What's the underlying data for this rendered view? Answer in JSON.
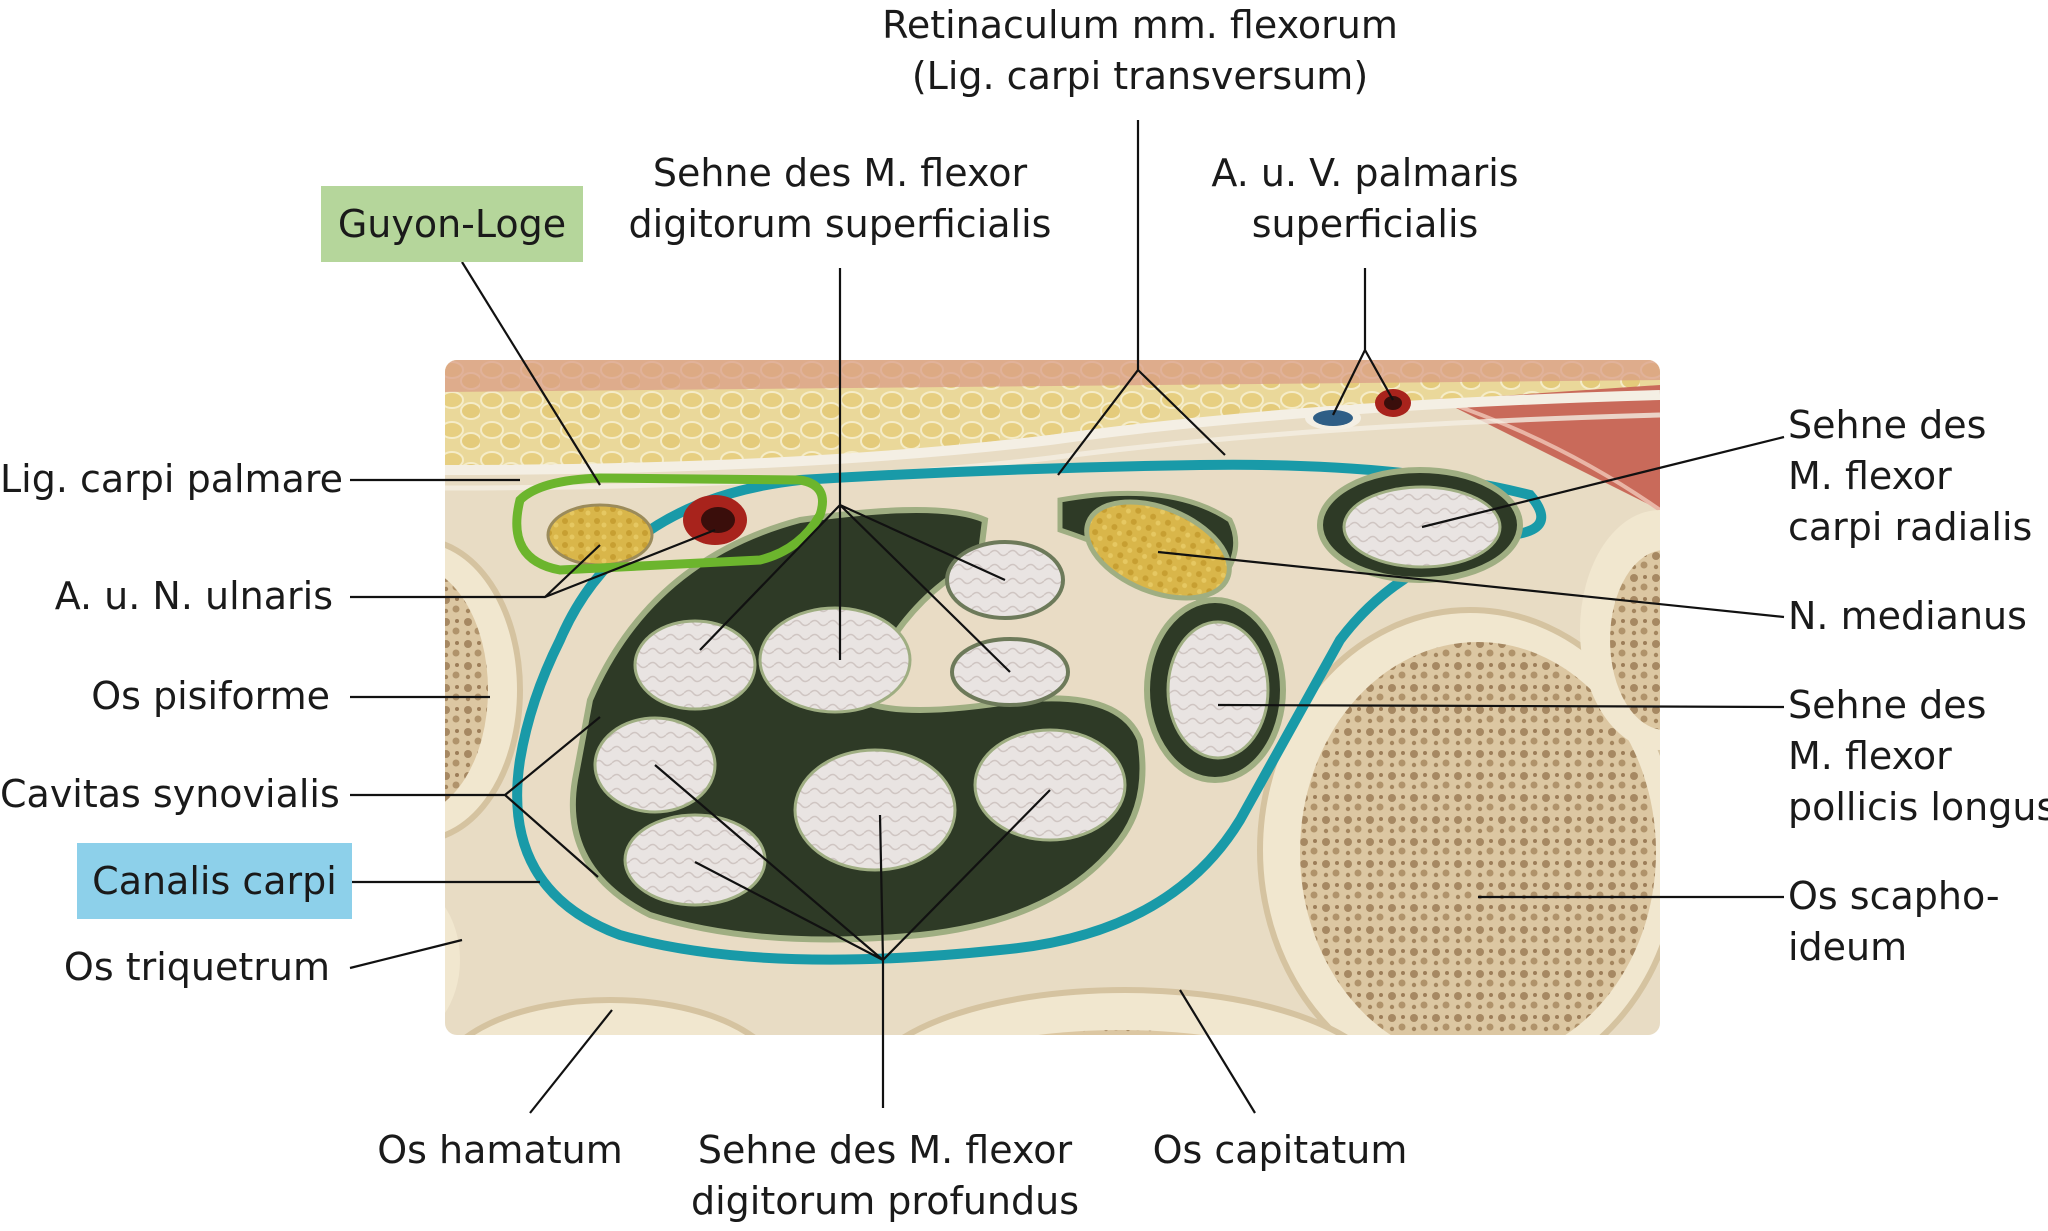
{
  "colors": {
    "guyon_box": "#b5d69b",
    "guyon_outline": "#6cb52d",
    "canalis_box": "#8dd0ea",
    "canalis_outline": "#199aa8",
    "tendon_sheath": "#2e3a26",
    "nerve": "#d6b84a",
    "artery": "#a8231c",
    "vein": "#2f5e86",
    "bone_cortex": "#e9dcc0",
    "bone_spongy": "#c8ad86",
    "fat": "#e2d08a",
    "muscle": "#c96a5a"
  },
  "labels": {
    "retinaculum": [
      "Retinaculum mm. flexorum",
      "(Lig. carpi transversum)"
    ],
    "fds": [
      "Sehne des M. flexor",
      "digitorum superficialis"
    ],
    "a_v_palmaris": [
      "A. u. V. palmaris",
      "superficialis"
    ],
    "guyon": "Guyon-Loge",
    "lig_palmare": "Lig. carpi palmare",
    "a_n_ulnaris": "A. u. N. ulnaris",
    "os_pisiforme": "Os pisiforme",
    "cavitas": "Cavitas synovialis",
    "canalis": "Canalis carpi",
    "os_triquetrum": "Os triquetrum",
    "fcr": [
      "Sehne des",
      "M. flexor",
      "carpi radialis"
    ],
    "n_medianus": "N. medianus",
    "fpl": [
      "Sehne des",
      "M. flexor",
      "pollicis longus"
    ],
    "os_scaphoideum": [
      "Os scapho-",
      "ideum"
    ],
    "os_hamatum": "Os hamatum",
    "fdp": [
      "Sehne des M. flexor",
      "digitorum profundus"
    ],
    "os_capitatum": "Os capitatum"
  }
}
